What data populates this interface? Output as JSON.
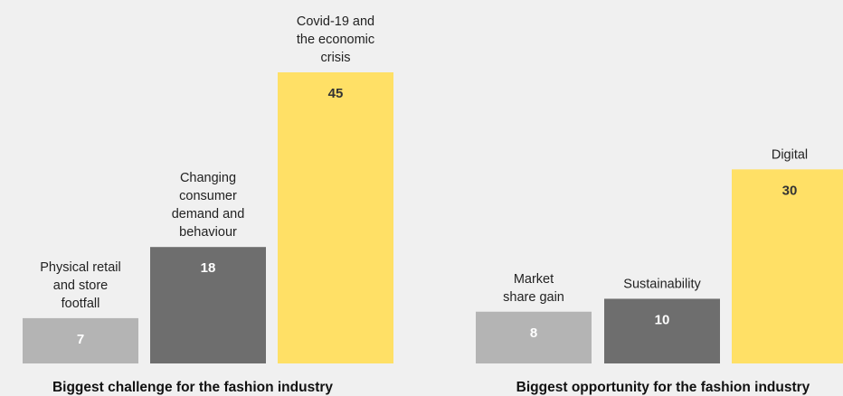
{
  "chart_data": [
    {
      "type": "bar",
      "title": "Biggest challenge for the fashion industry",
      "categories": [
        [
          "Physical retail",
          "and store",
          "footfall"
        ],
        [
          "Changing",
          "consumer",
          "demand and",
          "behaviour"
        ],
        [
          "Covid-19 and",
          "the economic",
          "crisis"
        ]
      ],
      "values": [
        7,
        18,
        45
      ],
      "colors": [
        "#b4b4b4",
        "#6e6e6e",
        "#ffe066"
      ],
      "value_label_colors": [
        "#ffffff",
        "#ffffff",
        "#333333"
      ]
    },
    {
      "type": "bar",
      "title": "Biggest opportunity for the fashion industry",
      "categories": [
        [
          "Market",
          "share gain"
        ],
        [
          "Sustainability"
        ],
        [
          "Digital"
        ]
      ],
      "values": [
        8,
        10,
        30
      ],
      "colors": [
        "#b4b4b4",
        "#6e6e6e",
        "#ffe066"
      ],
      "value_label_colors": [
        "#ffffff",
        "#ffffff",
        "#333333"
      ]
    }
  ]
}
